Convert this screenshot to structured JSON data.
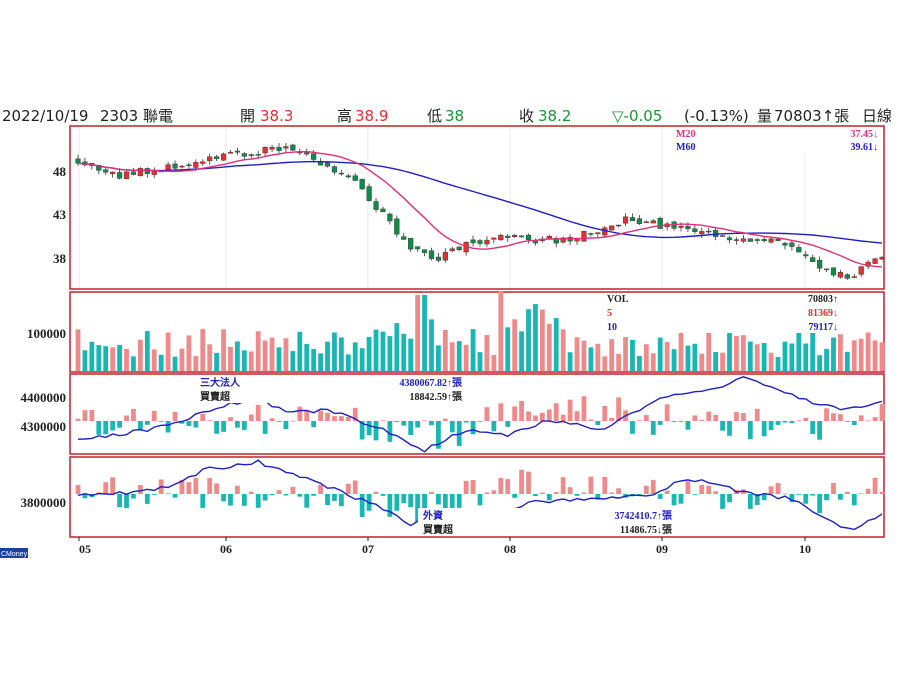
{
  "header": {
    "date": "2022/10/19",
    "stock": "2303 聯電",
    "open_label": "開",
    "open": "38.3",
    "high_label": "高",
    "high": "38.9",
    "low_label": "低",
    "low": "38",
    "close_label": "收",
    "close": "38.2",
    "change": "▽-0.05",
    "pct": "(-0.13%)",
    "vol_label": "量",
    "vol": "70803↑張",
    "period": "日線"
  },
  "colors": {
    "frame": "#c0202e",
    "up": "#e03030",
    "down": "#118a4a",
    "pos_bar": "#f08a8a",
    "neg_bar": "#19b7b4",
    "ma20": "#e0307a",
    "ma60": "#2020c0",
    "label_red": "#e03030",
    "label_green": "#119933"
  },
  "price_panel": {
    "legend": [
      {
        "name": "M20",
        "value": "37.45↓"
      },
      {
        "name": "M60",
        "value": "39.61↓"
      }
    ],
    "y_ticks": [
      "48",
      "43",
      "38"
    ]
  },
  "volume_panel": {
    "y_ticks": [
      "100000"
    ],
    "legend": [
      {
        "name": "VOL",
        "value": "70803↑"
      },
      {
        "name": "5",
        "value": "81369↓"
      },
      {
        "name": "10",
        "value": "79117↓"
      }
    ]
  },
  "inst_panel": {
    "y_ticks": [
      "4400000",
      "4300000"
    ],
    "title": "三大法人",
    "value1": "4380067.82↑張",
    "sub_title": "買賣超",
    "value2": "18842.59↑張"
  },
  "foreign_panel": {
    "y_ticks": [
      "3800000"
    ],
    "title": "外資",
    "value1": "3742410.7↑張",
    "sub_title": "買賣超",
    "value2": "11486.75↓張"
  },
  "x_ticks": [
    "05",
    "06",
    "07",
    "08",
    "09",
    "10"
  ],
  "brand": "CMoney",
  "chart_data": [
    {
      "type": "candlestick",
      "x_range": [
        "2022/05/02",
        "2022/10/19"
      ],
      "ylim": [
        35,
        52
      ],
      "y_ticks": [
        48,
        43,
        38
      ],
      "anchors_date_price": [
        [
          "05/02",
          49
        ],
        [
          "05/10",
          47.5
        ],
        [
          "05/20",
          48.5
        ],
        [
          "05/31",
          49.5
        ],
        [
          "06/10",
          50.2
        ],
        [
          "06/15",
          50.5
        ],
        [
          "06/24",
          48.5
        ],
        [
          "06/30",
          47
        ],
        [
          "07/06",
          43
        ],
        [
          "07/12",
          39.5
        ],
        [
          "07/18",
          38
        ],
        [
          "07/25",
          39.5
        ],
        [
          "08/03",
          41
        ],
        [
          "08/08",
          40
        ],
        [
          "08/16",
          40.5
        ],
        [
          "08/26",
          42.5
        ],
        [
          "09/06",
          41.5
        ],
        [
          "09/15",
          40.5
        ],
        [
          "09/23",
          40
        ],
        [
          "09/30",
          39.5
        ],
        [
          "10/05",
          37.5
        ],
        [
          "10/12",
          36
        ],
        [
          "10/19",
          38.2
        ]
      ],
      "series": [
        {
          "name": "M20",
          "last": 37.45
        },
        {
          "name": "M60",
          "last": 39.61
        }
      ]
    },
    {
      "type": "bar",
      "name": "VOL",
      "last": 70803,
      "y_ticks": [
        100000
      ]
    },
    {
      "type": "bar+line",
      "name": "三大法人",
      "last": 4380067.82,
      "y_ticks": [
        4400000,
        4300000
      ]
    },
    {
      "type": "bar+line",
      "name": "外資",
      "last": 3742410.7,
      "y_ticks": [
        3800000
      ]
    }
  ]
}
